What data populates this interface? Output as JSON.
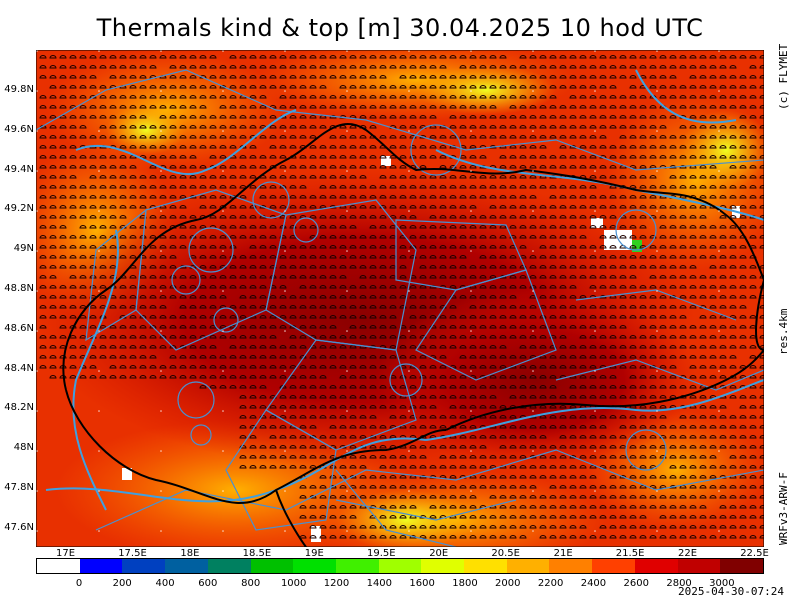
{
  "title": "Thermals kind & top [m]  30.04.2025 10 hod UTC",
  "side_labels": {
    "copyright": "(c) FLYMET",
    "resolution": "res.4km",
    "model": "WRFv3-ARW-F"
  },
  "timestamp": "2025-04-30-07:24",
  "lat_ticks": [
    "49.8N",
    "49.6N",
    "49.4N",
    "49.2N",
    "49N",
    "48.8N",
    "48.6N",
    "48.4N",
    "48.2N",
    "48N",
    "47.8N",
    "47.6N"
  ],
  "lon_ticks": [
    "17E",
    "17.5E",
    "18E",
    "18.5E",
    "19E",
    "19.5E",
    "20E",
    "20.5E",
    "21E",
    "21.5E",
    "22E",
    "22.5E"
  ],
  "colorbar": {
    "labels": [
      "0",
      "200",
      "400",
      "600",
      "800",
      "1000",
      "1200",
      "1400",
      "1600",
      "1800",
      "2000",
      "2200",
      "2400",
      "2600",
      "2800",
      "3000"
    ],
    "colors": [
      "#ffffff",
      "#0000ff",
      "#0040c0",
      "#0060a0",
      "#008060",
      "#00c000",
      "#00e000",
      "#40f000",
      "#a0ff00",
      "#e0ff00",
      "#ffe000",
      "#ffb000",
      "#ff8000",
      "#ff4000",
      "#e00000",
      "#c00000",
      "#800000"
    ]
  },
  "map_colors": {
    "river": "#3fa0e0",
    "border": "#000000",
    "airspace": "#4a90d0",
    "grid": "#ffffff"
  }
}
